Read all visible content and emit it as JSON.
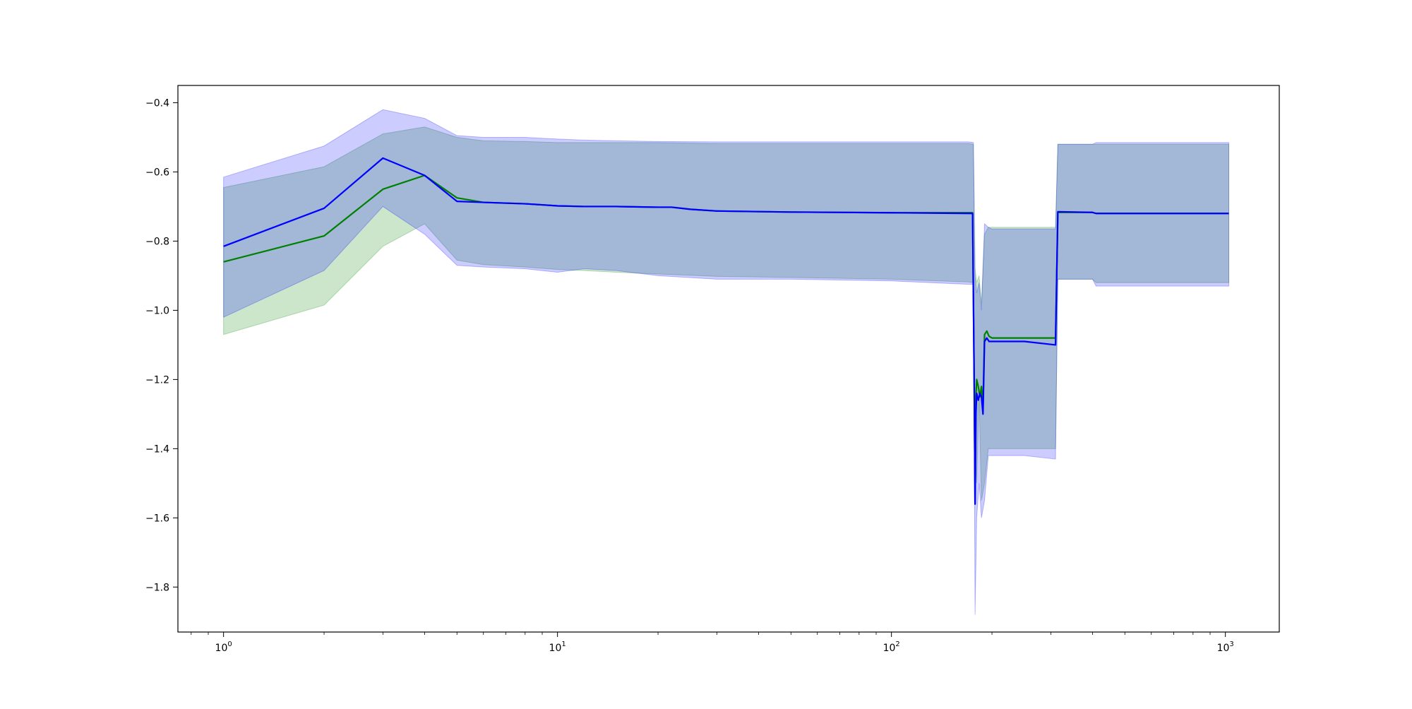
{
  "chart_data": {
    "type": "line",
    "title": "",
    "xlabel": "",
    "ylabel": "",
    "xscale": "log",
    "xlim": [
      0.73,
      1450
    ],
    "ylim": [
      -1.93,
      -0.35
    ],
    "x_ticks": [
      {
        "value": 1,
        "base": "10",
        "exp": "0"
      },
      {
        "value": 10,
        "base": "10",
        "exp": "1"
      },
      {
        "value": 100,
        "base": "10",
        "exp": "2"
      },
      {
        "value": 1000,
        "base": "10",
        "exp": "3"
      }
    ],
    "y_ticks": [
      {
        "value": -0.4,
        "label": "−0.4"
      },
      {
        "value": -0.6,
        "label": "−0.6"
      },
      {
        "value": -0.8,
        "label": "−0.8"
      },
      {
        "value": -1.0,
        "label": "−1.0"
      },
      {
        "value": -1.2,
        "label": "−1.2"
      },
      {
        "value": -1.4,
        "label": "−1.4"
      },
      {
        "value": -1.6,
        "label": "−1.6"
      },
      {
        "value": -1.8,
        "label": "−1.8"
      }
    ],
    "grid": false,
    "legend": "none",
    "colors": {
      "green": "#008000",
      "blue": "#0000ff",
      "green_band": "#008000",
      "blue_band": "#0000ff"
    },
    "bands": [
      {
        "color": "#008000",
        "opacity": 0.2,
        "x": [
          1,
          2,
          3,
          4,
          5,
          6,
          8,
          10,
          12,
          15,
          20,
          30,
          50,
          100,
          170,
          176,
          178,
          180,
          183,
          186,
          190,
          195,
          200,
          250,
          310,
          315,
          400,
          410,
          500,
          1024
        ],
        "lower": [
          -1.07,
          -0.985,
          -0.815,
          -0.75,
          -0.855,
          -0.868,
          -0.875,
          -0.882,
          -0.885,
          -0.89,
          -0.895,
          -0.902,
          -0.905,
          -0.91,
          -0.918,
          -0.92,
          -1.4,
          -1.5,
          -1.25,
          -1.55,
          -1.5,
          -1.4,
          -1.4,
          -1.4,
          -1.4,
          -0.91,
          -0.91,
          -0.92,
          -0.92,
          -0.92
        ],
        "upper": [
          -0.645,
          -0.585,
          -0.49,
          -0.47,
          -0.5,
          -0.51,
          -0.512,
          -0.515,
          -0.515,
          -0.515,
          -0.515,
          -0.518,
          -0.518,
          -0.518,
          -0.518,
          -0.52,
          -0.88,
          -0.92,
          -0.9,
          -0.98,
          -0.78,
          -0.76,
          -0.76,
          -0.76,
          -0.76,
          -0.52,
          -0.52,
          -0.52,
          -0.52,
          -0.52
        ]
      },
      {
        "color": "#0000ff",
        "opacity": 0.2,
        "x": [
          1,
          2,
          3,
          4,
          5,
          6,
          8,
          10,
          12,
          15,
          20,
          30,
          50,
          100,
          170,
          176,
          178,
          180,
          183,
          186,
          190,
          195,
          200,
          250,
          310,
          315,
          400,
          410,
          500,
          1024
        ],
        "lower": [
          -1.02,
          -0.885,
          -0.7,
          -0.78,
          -0.87,
          -0.875,
          -0.88,
          -0.89,
          -0.88,
          -0.885,
          -0.9,
          -0.91,
          -0.91,
          -0.915,
          -0.925,
          -0.925,
          -1.88,
          -1.6,
          -1.5,
          -1.6,
          -1.55,
          -1.42,
          -1.42,
          -1.42,
          -1.43,
          -0.91,
          -0.91,
          -0.93,
          -0.93,
          -0.93
        ],
        "upper": [
          -0.615,
          -0.525,
          -0.42,
          -0.445,
          -0.495,
          -0.5,
          -0.5,
          -0.505,
          -0.508,
          -0.51,
          -0.512,
          -0.513,
          -0.513,
          -0.513,
          -0.513,
          -0.515,
          -0.9,
          -0.95,
          -0.92,
          -1.0,
          -0.75,
          -0.76,
          -0.765,
          -0.765,
          -0.765,
          -0.52,
          -0.52,
          -0.515,
          -0.515,
          -0.515
        ]
      }
    ],
    "series": [
      {
        "color": "#008000",
        "x": [
          1,
          2,
          3,
          4,
          5,
          6,
          8,
          10,
          12,
          15,
          20,
          22,
          25,
          30,
          50,
          100,
          175,
          177,
          178,
          179,
          180,
          182,
          184,
          186,
          188,
          190,
          193,
          196,
          200,
          250,
          310,
          315,
          400,
          410,
          1024
        ],
        "y": [
          -0.86,
          -0.785,
          -0.65,
          -0.61,
          -0.675,
          -0.688,
          -0.692,
          -0.698,
          -0.7,
          -0.7,
          -0.702,
          -0.702,
          -0.708,
          -0.713,
          -0.716,
          -0.718,
          -0.718,
          -1.22,
          -1.56,
          -1.25,
          -1.2,
          -1.22,
          -1.25,
          -1.22,
          -1.28,
          -1.07,
          -1.06,
          -1.075,
          -1.08,
          -1.08,
          -1.08,
          -0.717,
          -0.717,
          -0.72,
          -0.72
        ]
      },
      {
        "color": "#0000ff",
        "x": [
          1,
          2,
          3,
          4,
          5,
          6,
          8,
          10,
          12,
          15,
          20,
          22,
          25,
          30,
          50,
          100,
          175,
          177,
          178,
          179,
          180,
          182,
          184,
          186,
          188,
          190,
          193,
          196,
          200,
          250,
          310,
          315,
          400,
          410,
          1024
        ],
        "y": [
          -0.815,
          -0.705,
          -0.56,
          -0.61,
          -0.685,
          -0.688,
          -0.692,
          -0.698,
          -0.7,
          -0.7,
          -0.702,
          -0.702,
          -0.708,
          -0.713,
          -0.716,
          -0.718,
          -0.72,
          -1.23,
          -1.56,
          -1.3,
          -1.24,
          -1.26,
          -1.24,
          -1.25,
          -1.3,
          -1.09,
          -1.08,
          -1.09,
          -1.09,
          -1.09,
          -1.1,
          -0.715,
          -0.717,
          -0.72,
          -0.72
        ]
      }
    ]
  }
}
